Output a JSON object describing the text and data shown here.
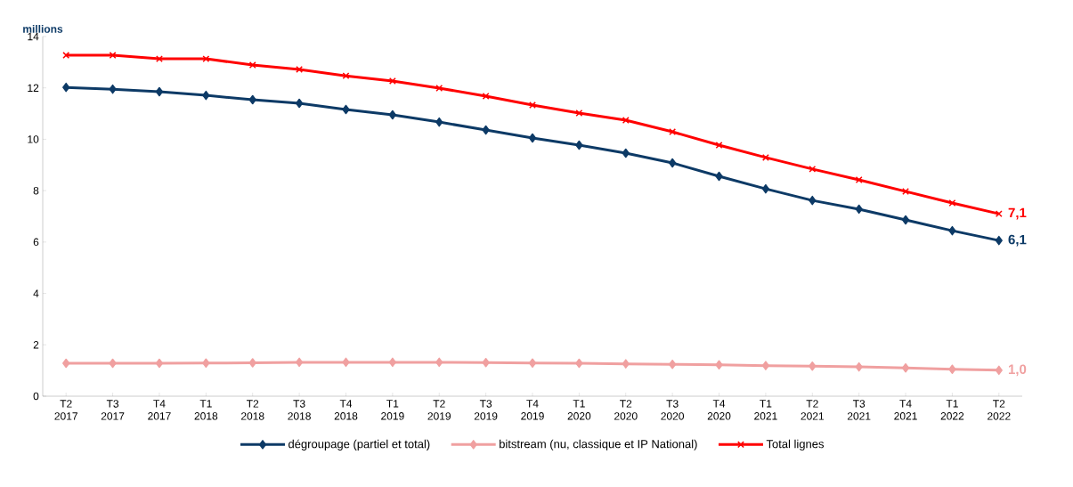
{
  "chart_data": {
    "type": "line",
    "ylabel": "millions",
    "categories": [
      "T2 2017",
      "T3 2017",
      "T4 2017",
      "T1 2018",
      "T2 2018",
      "T3 2018",
      "T4 2018",
      "T1 2019",
      "T2 2019",
      "T3 2019",
      "T4 2019",
      "T1 2020",
      "T2 2020",
      "T3 2020",
      "T4 2020",
      "T1 2021",
      "T2 2021",
      "T3 2021",
      "T4 2021",
      "T1 2022",
      "T2 2022"
    ],
    "series": [
      {
        "name": "dégroupage (partiel et total)",
        "color": "#0d3a66",
        "marker": "diamond",
        "values": [
          12.02,
          11.95,
          11.85,
          11.71,
          11.54,
          11.4,
          11.16,
          10.95,
          10.67,
          10.36,
          10.05,
          9.77,
          9.46,
          9.08,
          8.56,
          8.07,
          7.62,
          7.28,
          6.86,
          6.44,
          6.06
        ],
        "value_labels": [
          null,
          null,
          null,
          null,
          null,
          null,
          null,
          null,
          null,
          null,
          null,
          null,
          null,
          null,
          null,
          null,
          null,
          null,
          null,
          null,
          "6,1"
        ]
      },
      {
        "name": "bitstream (nu, classique et IP National)",
        "color": "#f0a0a0",
        "marker": "diamond",
        "values": [
          1.28,
          1.28,
          1.28,
          1.29,
          1.3,
          1.32,
          1.32,
          1.32,
          1.32,
          1.31,
          1.29,
          1.28,
          1.26,
          1.24,
          1.22,
          1.19,
          1.17,
          1.14,
          1.1,
          1.05,
          1.01
        ],
        "value_labels": [
          null,
          null,
          null,
          null,
          null,
          null,
          null,
          null,
          null,
          null,
          null,
          null,
          null,
          null,
          null,
          null,
          null,
          null,
          null,
          null,
          "1,0"
        ]
      },
      {
        "name": "Total lignes",
        "color": "#ff0000",
        "marker": "cross",
        "values": [
          13.27,
          13.27,
          13.13,
          13.13,
          12.89,
          12.72,
          12.47,
          12.27,
          11.99,
          11.68,
          11.33,
          11.02,
          10.74,
          10.29,
          9.77,
          9.29,
          8.84,
          8.42,
          7.97,
          7.52,
          7.1
        ],
        "value_labels": [
          null,
          null,
          null,
          null,
          null,
          null,
          null,
          null,
          null,
          null,
          null,
          null,
          null,
          null,
          null,
          null,
          null,
          null,
          null,
          null,
          "7,1"
        ]
      }
    ],
    "ylim": [
      0,
      14
    ],
    "yticks": [
      0,
      2,
      4,
      6,
      8,
      10,
      12,
      14
    ],
    "grid": false,
    "legend": "bottom"
  }
}
